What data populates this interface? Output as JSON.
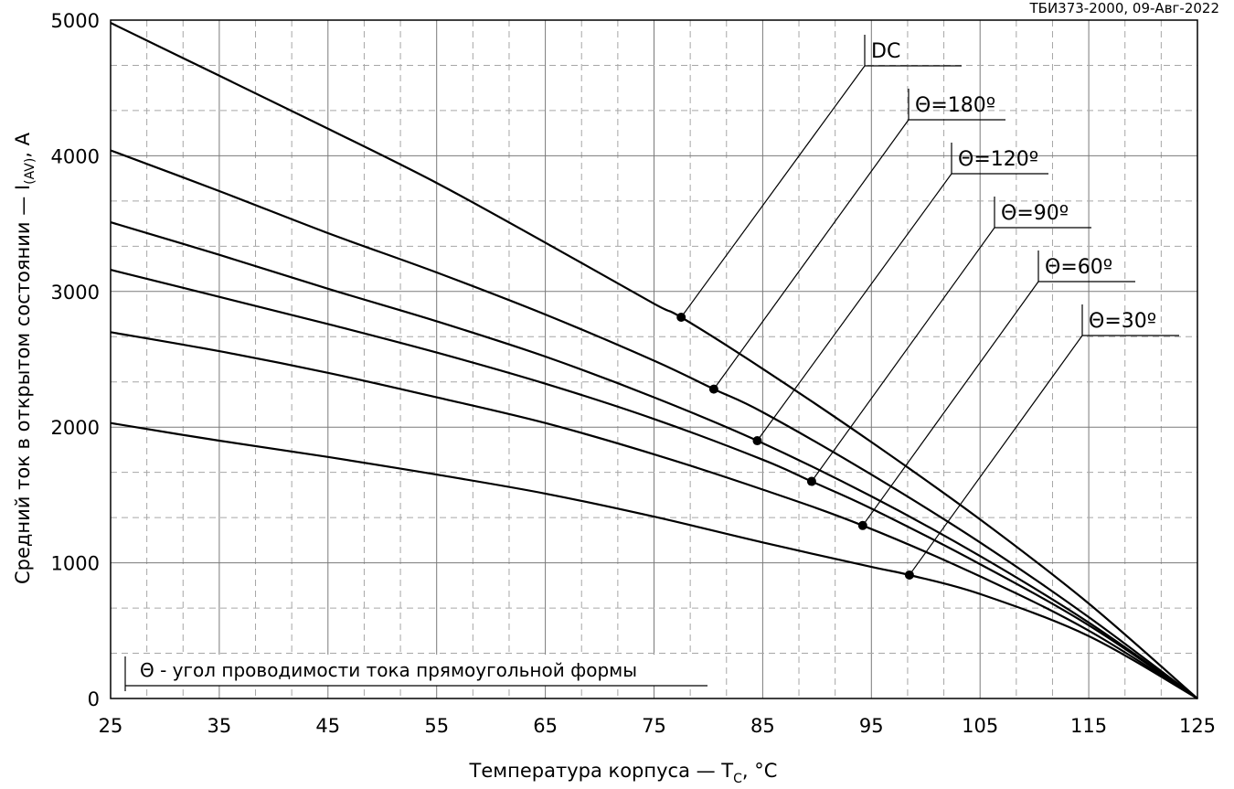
{
  "chart_data": {
    "type": "line",
    "doc_id": "ТБИ373-2000, 09-Авг-2022",
    "xlabel": "Температура корпуса — T",
    "xlabel_sub": "C",
    "xlabel_tail": ", °C",
    "ylabel": "Средний ток в открытом состоянии — I",
    "ylabel_sub": "(AV)",
    "ylabel_tail": ", A",
    "xlim": [
      25,
      125
    ],
    "ylim": [
      0,
      5000
    ],
    "x_ticks": [
      "25",
      "35",
      "45",
      "55",
      "65",
      "75",
      "85",
      "95",
      "105",
      "115",
      "125"
    ],
    "y_ticks": [
      "0",
      "1000",
      "2000",
      "3000",
      "4000",
      "5000"
    ],
    "grid": true,
    "note": "Θ - угол проводимости тока прямоугольной формы",
    "series": [
      {
        "name": "DC",
        "marker": {
          "x": 77.5,
          "y": 2810
        },
        "points": [
          [
            25,
            4980
          ],
          [
            35,
            4590
          ],
          [
            45,
            4200
          ],
          [
            55,
            3800
          ],
          [
            65,
            3360
          ],
          [
            75,
            2910
          ],
          [
            77.5,
            2810
          ],
          [
            85,
            2430
          ],
          [
            95,
            1890
          ],
          [
            105,
            1320
          ],
          [
            115,
            700
          ],
          [
            125,
            0
          ]
        ]
      },
      {
        "name": "Θ=180º",
        "marker": {
          "x": 80.5,
          "y": 2280
        },
        "points": [
          [
            25,
            4040
          ],
          [
            35,
            3740
          ],
          [
            45,
            3430
          ],
          [
            55,
            3140
          ],
          [
            65,
            2830
          ],
          [
            75,
            2490
          ],
          [
            80.5,
            2280
          ],
          [
            85,
            2110
          ],
          [
            95,
            1650
          ],
          [
            105,
            1150
          ],
          [
            115,
            600
          ],
          [
            125,
            0
          ]
        ]
      },
      {
        "name": "Θ=120º",
        "marker": {
          "x": 84.5,
          "y": 1900
        },
        "points": [
          [
            25,
            3510
          ],
          [
            35,
            3270
          ],
          [
            45,
            3020
          ],
          [
            55,
            2780
          ],
          [
            65,
            2520
          ],
          [
            75,
            2220
          ],
          [
            84.5,
            1900
          ],
          [
            95,
            1490
          ],
          [
            105,
            1050
          ],
          [
            115,
            560
          ],
          [
            125,
            0
          ]
        ]
      },
      {
        "name": "Θ=90º",
        "marker": {
          "x": 89.5,
          "y": 1600
        },
        "points": [
          [
            25,
            3160
          ],
          [
            35,
            2960
          ],
          [
            45,
            2760
          ],
          [
            55,
            2550
          ],
          [
            65,
            2320
          ],
          [
            75,
            2060
          ],
          [
            85,
            1760
          ],
          [
            89.5,
            1600
          ],
          [
            95,
            1400
          ],
          [
            105,
            990
          ],
          [
            115,
            540
          ],
          [
            125,
            0
          ]
        ]
      },
      {
        "name": "Θ=60º",
        "marker": {
          "x": 94.2,
          "y": 1275
        },
        "points": [
          [
            25,
            2700
          ],
          [
            35,
            2560
          ],
          [
            45,
            2400
          ],
          [
            55,
            2220
          ],
          [
            65,
            2030
          ],
          [
            75,
            1800
          ],
          [
            85,
            1540
          ],
          [
            94.2,
            1275
          ],
          [
            105,
            900
          ],
          [
            115,
            500
          ],
          [
            125,
            0
          ]
        ]
      },
      {
        "name": "Θ=30º",
        "marker": {
          "x": 98.5,
          "y": 910
        },
        "points": [
          [
            25,
            2030
          ],
          [
            35,
            1900
          ],
          [
            45,
            1780
          ],
          [
            55,
            1650
          ],
          [
            65,
            1510
          ],
          [
            75,
            1340
          ],
          [
            85,
            1150
          ],
          [
            95,
            970
          ],
          [
            98.5,
            910
          ],
          [
            105,
            770
          ],
          [
            115,
            460
          ],
          [
            125,
            0
          ]
        ]
      }
    ]
  }
}
